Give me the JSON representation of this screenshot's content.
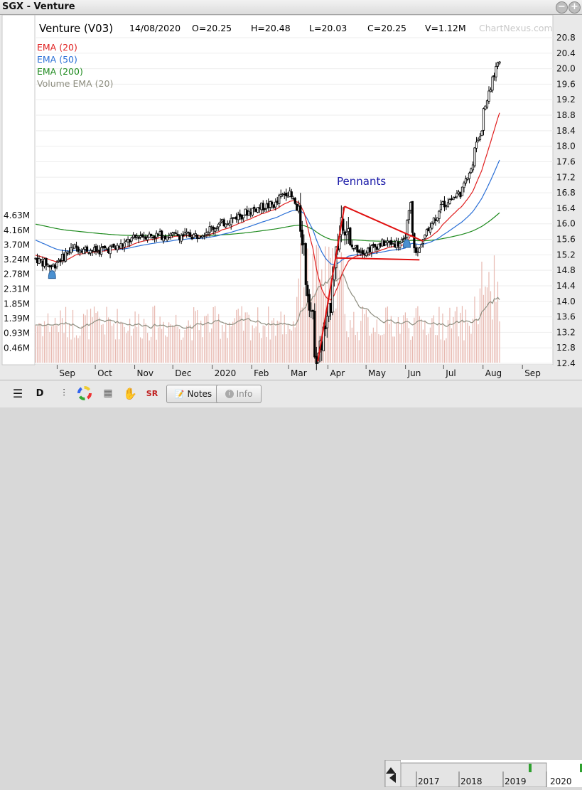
{
  "window": {
    "title": "SGX - Venture"
  },
  "header": {
    "name": "Venture (V03)",
    "date": "14/08/2020",
    "open": "O=20.25",
    "high": "H=20.48",
    "low": "L=20.03",
    "close": "C=20.25",
    "volume": "V=1.12M",
    "brand": "ChartNexus.com"
  },
  "legend": [
    {
      "label": "EMA (20)",
      "color": "#e02020"
    },
    {
      "label": "EMA (50)",
      "color": "#2a6fd6"
    },
    {
      "label": "EMA (200)",
      "color": "#1d8a1d"
    },
    {
      "label": "Volume EMA (20)",
      "color": "#8e8e80"
    }
  ],
  "chart_data": {
    "type": "candlestick",
    "price_axis": {
      "ticks": [
        "12.4",
        "12.8",
        "13.2",
        "13.6",
        "14.0",
        "14.4",
        "14.8",
        "15.2",
        "15.6",
        "16.0",
        "16.4",
        "16.8",
        "17.2",
        "17.6",
        "18.0",
        "18.4",
        "18.8",
        "19.2",
        "19.6",
        "20.0",
        "20.4",
        "20.8"
      ],
      "range": [
        12.2,
        20.95
      ]
    },
    "volume_axis": {
      "ticks": [
        "0.46M",
        "0.93M",
        "1.39M",
        "1.85M",
        "2.31M",
        "2.78M",
        "3.24M",
        "3.70M",
        "4.16M",
        "4.63M"
      ],
      "range": [
        0,
        4.63
      ]
    },
    "x_axis": {
      "ticks": [
        "Sep",
        "Oct",
        "Nov",
        "Dec",
        "2020",
        "Feb",
        "Mar",
        "Apr",
        "May",
        "Jun",
        "Jul",
        "Aug",
        "Sep"
      ]
    },
    "annotation": "Pennants",
    "ohlc_keypoints": [
      [
        "2019-08-15",
        15.1
      ],
      [
        "2019-08-28",
        14.9
      ],
      [
        "2019-09-15",
        15.4
      ],
      [
        "2019-10-01",
        15.3
      ],
      [
        "2019-10-20",
        15.4
      ],
      [
        "2019-11-05",
        15.7
      ],
      [
        "2019-11-25",
        15.7
      ],
      [
        "2019-12-20",
        15.7
      ],
      [
        "2020-01-15",
        16.1
      ],
      [
        "2020-02-05",
        16.4
      ],
      [
        "2020-02-20",
        16.5
      ],
      [
        "2020-03-01",
        16.9
      ],
      [
        "2020-03-10",
        16.2
      ],
      [
        "2020-03-20",
        13.5
      ],
      [
        "2020-03-24",
        12.6
      ],
      [
        "2020-04-01",
        13.4
      ],
      [
        "2020-04-08",
        15.3
      ],
      [
        "2020-04-13",
        16.2
      ],
      [
        "2020-04-20",
        15.4
      ],
      [
        "2020-05-01",
        15.3
      ],
      [
        "2020-05-15",
        15.5
      ],
      [
        "2020-06-01",
        15.5
      ],
      [
        "2020-06-05",
        16.5
      ],
      [
        "2020-06-10",
        15.2
      ],
      [
        "2020-06-20",
        15.9
      ],
      [
        "2020-07-01",
        16.5
      ],
      [
        "2020-07-15",
        16.8
      ],
      [
        "2020-07-25",
        17.6
      ],
      [
        "2020-08-05",
        19.2
      ],
      [
        "2020-08-14",
        20.25
      ]
    ]
  },
  "toolbar": {
    "interval": "D",
    "notes_label": "Notes",
    "info_label": "Info",
    "nav_years": [
      "2017",
      "2018",
      "2019",
      "2020"
    ]
  }
}
